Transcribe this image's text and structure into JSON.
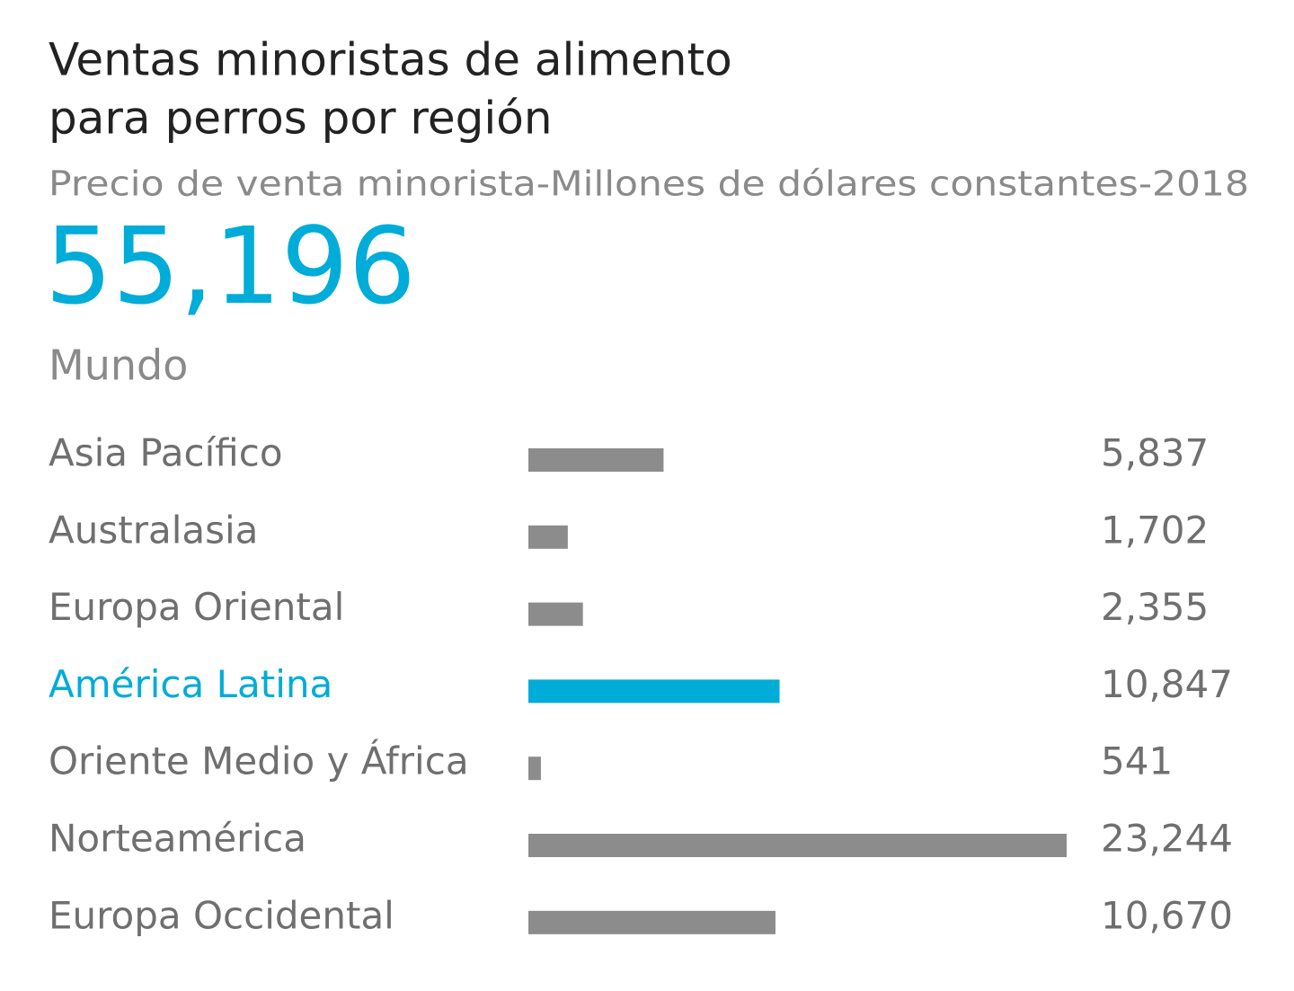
{
  "chart_data": {
    "type": "bar",
    "title": [
      "Ventas minoristas de alimento",
      "para perros por región"
    ],
    "subtitle": "Precio de venta minorista-Millones de dólares constantes-2018",
    "total": {
      "value": 55196,
      "label": "55,196"
    },
    "total_name": "Mundo",
    "categories": [
      "Asia Pacífico",
      "Australasia",
      "Europa Oriental",
      "América Latina",
      "Oriente Medio y África",
      "Norteamérica",
      "Europa Occidental"
    ],
    "values": [
      5837,
      1702,
      2355,
      10847,
      541,
      23244,
      10670
    ],
    "value_labels": [
      "5,837",
      "1,702",
      "2,355",
      "10,847",
      "541",
      "23,244",
      "10,670"
    ],
    "color": "#8c8c8c",
    "highlight_color": "#00acd8",
    "highlight": [
      false,
      false,
      false,
      true,
      false,
      false,
      false
    ]
  }
}
